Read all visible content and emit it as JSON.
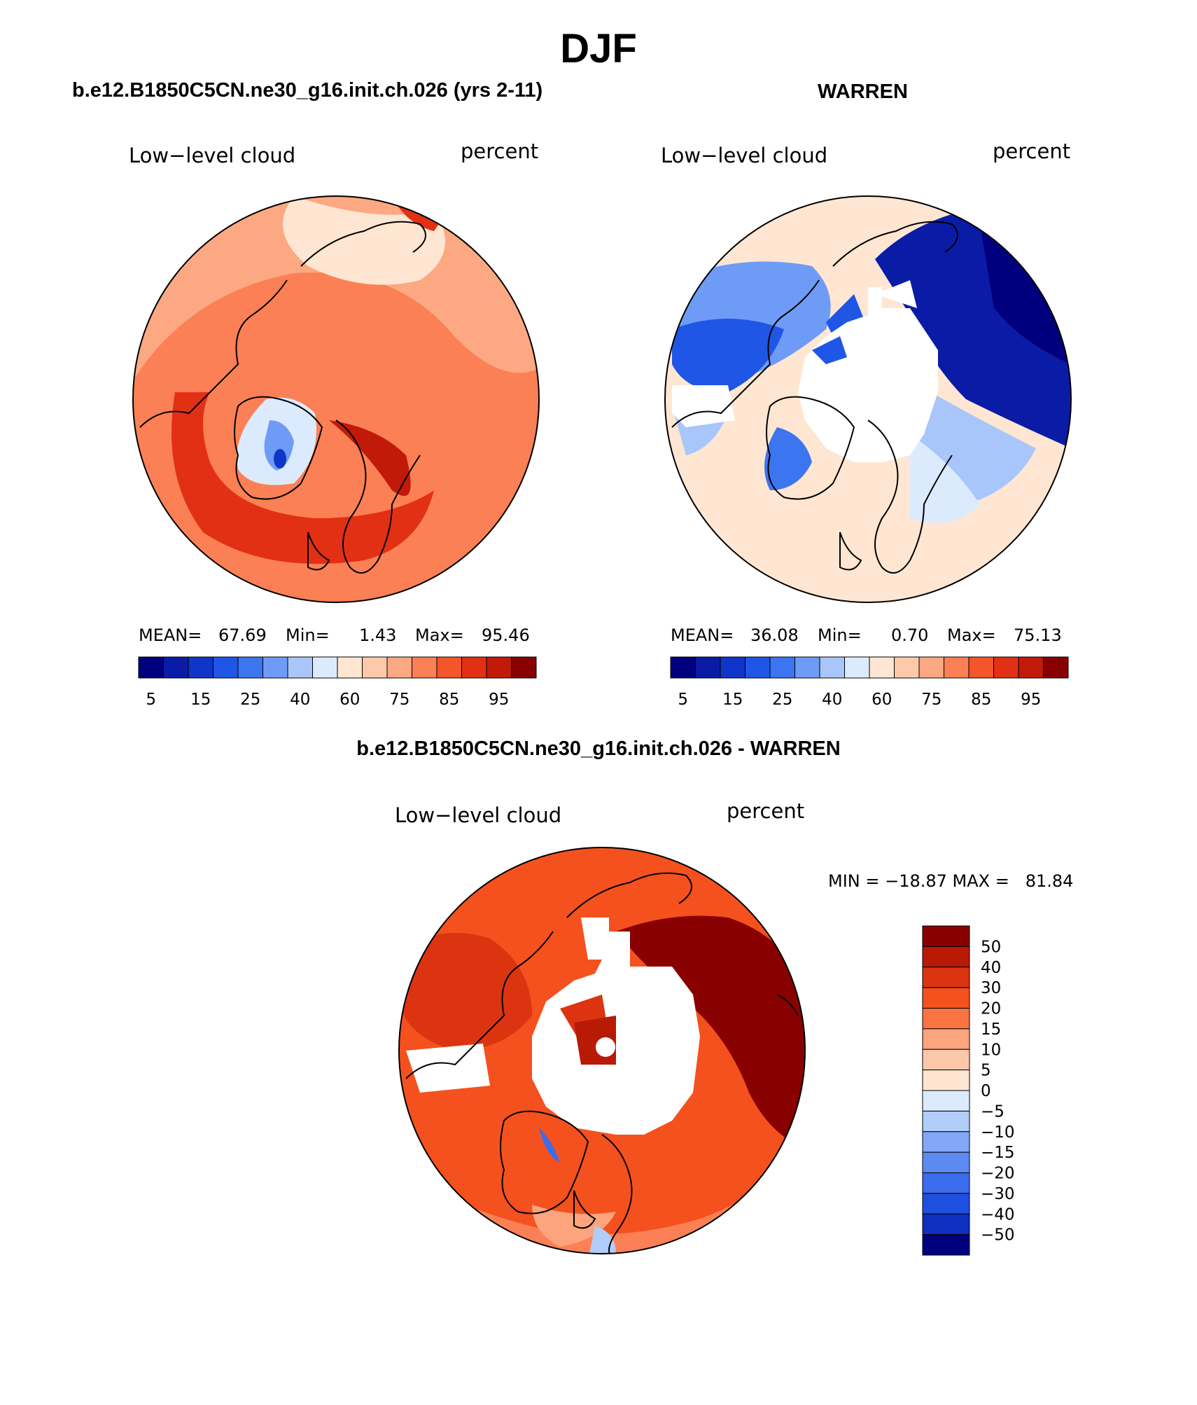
{
  "page": {
    "season_title": "DJF"
  },
  "panels": [
    {
      "case_title": "b.e12.B1850C5CN.ne30_g16.init.ch.026 (yrs 2-11)",
      "variable": "Low−level cloud",
      "units": "percent",
      "stats": {
        "mean_label": "MEAN=",
        "mean": "67.69",
        "min_label": "Min=",
        "min": "1.43",
        "max_label": "Max=",
        "max": "95.46"
      }
    },
    {
      "case_title": "WARREN",
      "variable": "Low−level cloud",
      "units": "percent",
      "stats": {
        "mean_label": "MEAN=",
        "mean": "36.08",
        "min_label": "Min=",
        "min": "0.70",
        "max_label": "Max=",
        "max": "75.13"
      }
    },
    {
      "case_title": "b.e12.B1850C5CN.ne30_g16.init.ch.026 - WARREN",
      "variable": "Low−level cloud",
      "units": "percent",
      "stats_line": "MIN = −18.87 MAX =   81.84"
    }
  ],
  "colorbar_abs": {
    "colors": [
      "#00007f",
      "#0a1ca6",
      "#0f35c9",
      "#1f56e6",
      "#3c75f0",
      "#6e9bf5",
      "#a8c6fa",
      "#dbebfd",
      "#fee6d2",
      "#fdc9aa",
      "#fca882",
      "#fc8055",
      "#f5552b",
      "#e23015",
      "#c21a08",
      "#890000"
    ],
    "labels": [
      "5",
      "15",
      "25",
      "40",
      "60",
      "75",
      "85",
      "95"
    ]
  },
  "colorbar_diff": {
    "colors": [
      "#890000",
      "#b81a06",
      "#dc3411",
      "#f4511e",
      "#fb7342",
      "#fca47d",
      "#fdc8aa",
      "#fee6d2",
      "#dbebfd",
      "#b1cdfa",
      "#82a8f6",
      "#5b8bf2",
      "#3a6cee",
      "#1f4fe0",
      "#0f2fc0",
      "#00007f"
    ],
    "labels": [
      "50",
      "40",
      "30",
      "20",
      "15",
      "10",
      "5",
      "0",
      "−5",
      "−10",
      "−15",
      "−20",
      "−30",
      "−40",
      "−50"
    ]
  },
  "map_colors": {
    "ocean_light": "#fee6d2",
    "salmon": "#fca882",
    "orange": "#fc8055",
    "red": "#e23015",
    "dark_red": "#890000",
    "navy": "#00007f",
    "blue": "#1f56e6",
    "light_blue": "#a8c6fa",
    "missing": "#ffffff",
    "coast": "#000000"
  }
}
